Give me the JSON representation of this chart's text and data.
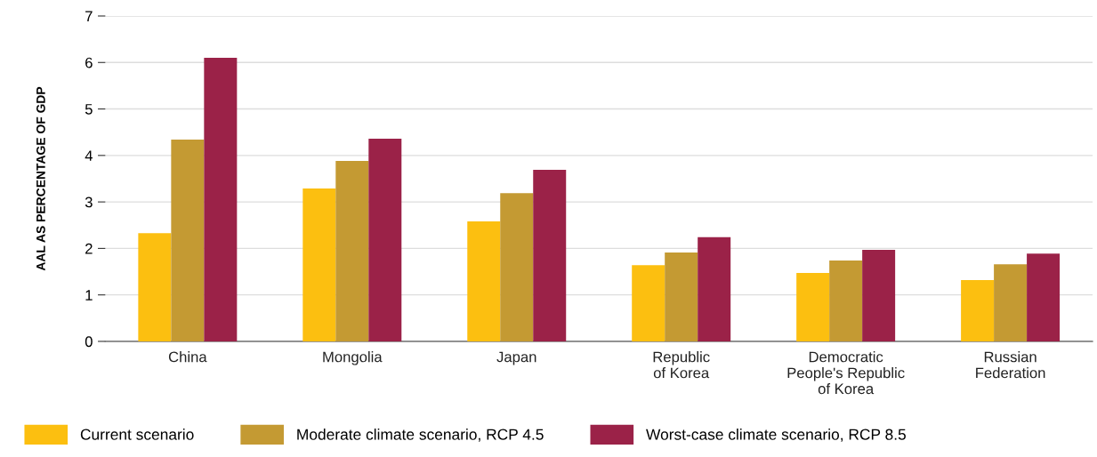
{
  "chart_data": {
    "type": "bar",
    "ylabel": "AAL AS PERCENTAGE OF GDP",
    "categories": [
      "China",
      "Mongolia",
      "Japan",
      "Republic\nof Korea",
      "Democratic\nPeople's Republic\nof Korea",
      "Russian\nFederation"
    ],
    "series": [
      {
        "name": "Current scenario",
        "color": "#fcbf10",
        "values": [
          2.33,
          3.29,
          2.58,
          1.64,
          1.47,
          1.32
        ]
      },
      {
        "name": "Moderate climate scenario, RCP 4.5",
        "color": "#c49a33",
        "values": [
          4.34,
          3.88,
          3.19,
          1.91,
          1.74,
          1.66
        ]
      },
      {
        "name": "Worst-case climate scenario, RCP 8.5",
        "color": "#9b2248",
        "values": [
          6.1,
          4.36,
          3.69,
          2.24,
          1.97,
          1.89
        ]
      }
    ],
    "ylim": [
      0,
      7
    ],
    "yticks": [
      0,
      1,
      2,
      3,
      4,
      5,
      6,
      7
    ],
    "grid": "y",
    "legend": "bottom"
  }
}
